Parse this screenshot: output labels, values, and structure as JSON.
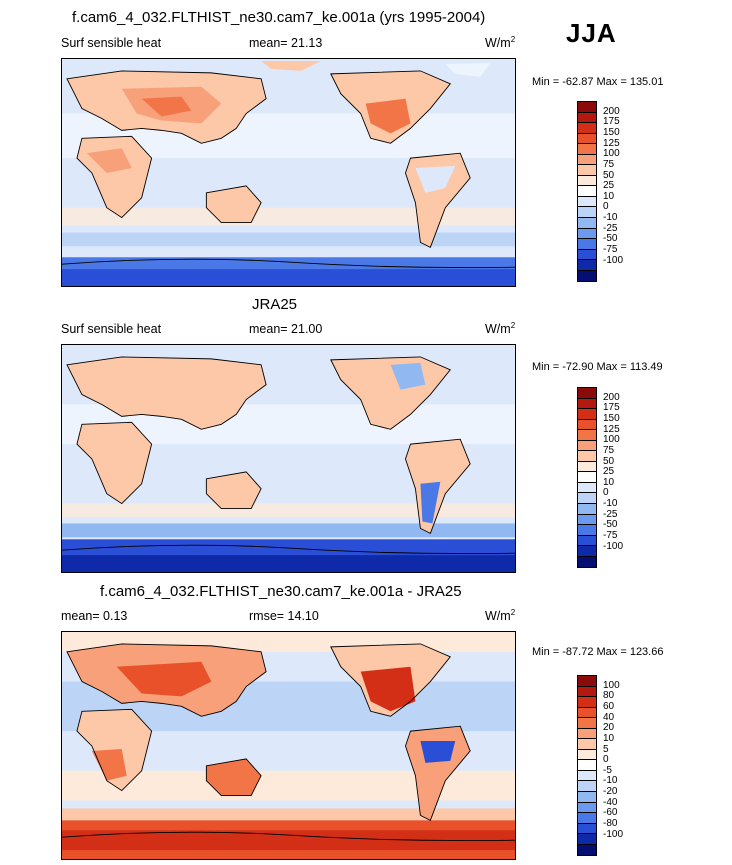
{
  "season": "JJA",
  "panels": [
    {
      "title": "f.cam6_4_032.FLTHIST_ne30.cam7_ke.001a (yrs 1995-2004)",
      "left_label": "Surf sensible heat",
      "center_label": "mean=  21.13",
      "units": "W/m",
      "units_exp": "2",
      "minmax": "Min = -62.87 Max = 135.01",
      "colorbar": {
        "levels": [
          "200",
          "175",
          "150",
          "125",
          "100",
          "75",
          "50",
          "25",
          "10",
          "0",
          "-10",
          "-25",
          "-50",
          "-75",
          "-100"
        ],
        "colors": [
          "#8b0a0a",
          "#b3190f",
          "#d32f17",
          "#e8512a",
          "#f27548",
          "#f8a07a",
          "#fcc8a8",
          "#fdeadb",
          "#ffffff",
          "#dde9fb",
          "#bcd5f7",
          "#92b8f2",
          "#6b9aee",
          "#4a78e6",
          "#2a4fd6",
          "#0f2aa8",
          "#050f73"
        ]
      },
      "chart_data": {
        "type": "heatmap",
        "title": "f.cam6_4_032.FLTHIST_ne30.cam7_ke.001a (yrs 1995-2004)",
        "variable": "Surf sensible heat",
        "units": "W/m2",
        "mean": 21.13,
        "min": -62.87,
        "max": 135.01
      }
    },
    {
      "title": "JRA25",
      "left_label": "Surf sensible heat",
      "center_label": "mean=  21.00",
      "units": "W/m",
      "units_exp": "2",
      "minmax": "Min = -72.90 Max = 113.49",
      "colorbar": {
        "levels": [
          "200",
          "175",
          "150",
          "125",
          "100",
          "75",
          "50",
          "25",
          "10",
          "0",
          "-10",
          "-25",
          "-50",
          "-75",
          "-100"
        ],
        "colors": [
          "#8b0a0a",
          "#b3190f",
          "#d32f17",
          "#e8512a",
          "#f27548",
          "#f8a07a",
          "#fcc8a8",
          "#fdeadb",
          "#ffffff",
          "#dde9fb",
          "#bcd5f7",
          "#92b8f2",
          "#6b9aee",
          "#4a78e6",
          "#2a4fd6",
          "#0f2aa8",
          "#050f73"
        ]
      },
      "chart_data": {
        "type": "heatmap",
        "title": "JRA25",
        "variable": "Surf sensible heat",
        "units": "W/m2",
        "mean": 21.0,
        "min": -72.9,
        "max": 113.49
      }
    },
    {
      "title": "f.cam6_4_032.FLTHIST_ne30.cam7_ke.001a - JRA25",
      "left_label": "mean=   0.13",
      "center_label": "rmse=  14.10",
      "units": "W/m",
      "units_exp": "2",
      "minmax": "Min = -87.72 Max = 123.66",
      "colorbar": {
        "levels": [
          "100",
          "80",
          "60",
          "40",
          "20",
          "10",
          "5",
          "0",
          "-5",
          "-10",
          "-20",
          "-40",
          "-60",
          "-80",
          "-100"
        ],
        "colors": [
          "#8b0a0a",
          "#b3190f",
          "#d32f17",
          "#e8512a",
          "#f27548",
          "#f8a07a",
          "#fcc8a8",
          "#fdeadb",
          "#ffffff",
          "#dde9fb",
          "#bcd5f7",
          "#92b8f2",
          "#6b9aee",
          "#4a78e6",
          "#2a4fd6",
          "#0f2aa8",
          "#050f73"
        ]
      },
      "chart_data": {
        "type": "heatmap",
        "title": "f.cam6_4_032.FLTHIST_ne30.cam7_ke.001a - JRA25",
        "units": "W/m2",
        "mean": 0.13,
        "rmse": 14.1,
        "min": -87.72,
        "max": 123.66
      }
    }
  ]
}
